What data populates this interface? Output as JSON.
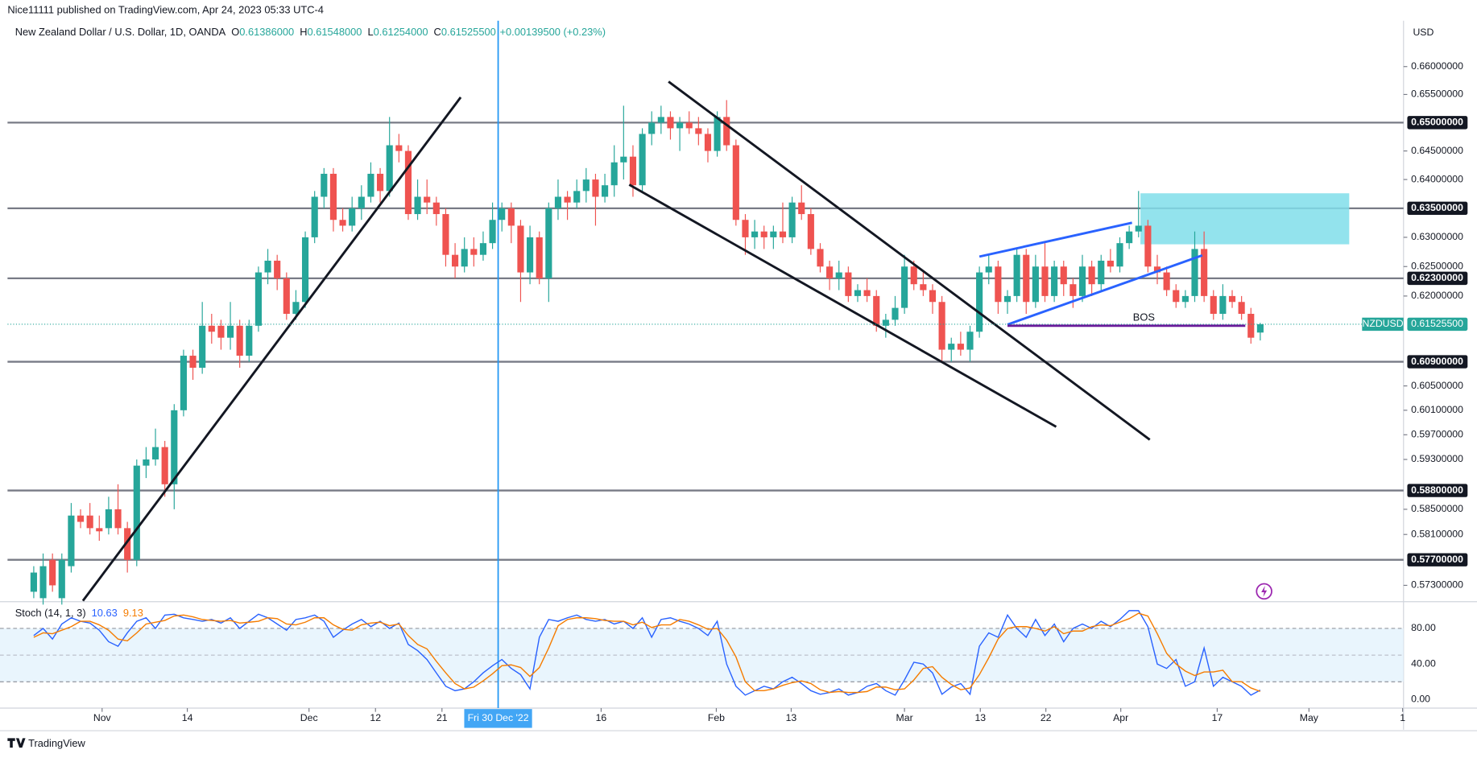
{
  "chart_data": {
    "type": "candlestick",
    "header_text": "Nice11111 published on TradingView.com, Apr 24, 2023 05:33 UTC-4",
    "title": "New Zealand Dollar / U.S. Dollar, 1D, OANDA",
    "ohlc_prefixes": [
      "O",
      "H",
      "L",
      "C"
    ],
    "last_labels": [
      "0.61386000",
      "0.61548000",
      "0.61254000",
      "0.61525500"
    ],
    "change_label": "+0.00139500 (+0.23%)",
    "currency": "USD",
    "symbol": "NZDUSD",
    "footer": "TradingView",
    "up_color": "#26a69a",
    "down_color": "#ef5350",
    "log_scale": true,
    "xlim": [
      -2.8,
      146.3
    ],
    "ylim": [
      0.5706,
      0.6683
    ],
    "xticks": [
      {
        "value": 7.3,
        "label": "Nov"
      },
      {
        "value": 16.4,
        "label": "14"
      },
      {
        "value": 29.4,
        "label": "Dec"
      },
      {
        "value": 36.5,
        "label": "12"
      },
      {
        "value": 43.6,
        "label": "21"
      },
      {
        "value": 60.6,
        "label": "16"
      },
      {
        "value": 72.9,
        "label": "Feb"
      },
      {
        "value": 80.9,
        "label": "13"
      },
      {
        "value": 93.0,
        "label": "Mar"
      },
      {
        "value": 101.1,
        "label": "13"
      },
      {
        "value": 108.1,
        "label": "22"
      },
      {
        "value": 116.1,
        "label": "Apr"
      },
      {
        "value": 126.4,
        "label": "17"
      },
      {
        "value": 136.2,
        "label": "May"
      },
      {
        "value": 146.2,
        "label": "1"
      }
    ],
    "yticks": [
      {
        "value": 0.66,
        "label": "0.66000000"
      },
      {
        "value": 0.655,
        "label": "0.65500000"
      },
      {
        "value": 0.645,
        "label": "0.64500000"
      },
      {
        "value": 0.64,
        "label": "0.64000000"
      },
      {
        "value": 0.63,
        "label": "0.63000000"
      },
      {
        "value": 0.625,
        "label": "0.62500000"
      },
      {
        "value": 0.62,
        "label": "0.62000000"
      },
      {
        "value": 0.605,
        "label": "0.60500000"
      },
      {
        "value": 0.601,
        "label": "0.60100000"
      },
      {
        "value": 0.597,
        "label": "0.59700000"
      },
      {
        "value": 0.593,
        "label": "0.59300000"
      },
      {
        "value": 0.585,
        "label": "0.58500000"
      },
      {
        "value": 0.581,
        "label": "0.58100000"
      },
      {
        "value": 0.573,
        "label": "0.57300000"
      }
    ],
    "levels": [
      {
        "value": 0.65,
        "label": "0.65000000"
      },
      {
        "value": 0.635,
        "label": "0.63500000"
      },
      {
        "value": 0.623,
        "label": "0.62300000"
      },
      {
        "value": 0.609,
        "label": "0.60900000"
      },
      {
        "value": 0.588,
        "label": "0.58800000"
      },
      {
        "value": 0.577,
        "label": "0.57700000"
      }
    ],
    "crosshair": {
      "x": 49.6,
      "label": "Fri 30 Dec '22"
    },
    "drawings": [
      {
        "color": "#131722",
        "points": [
          [
            5.25,
            0.5706
          ],
          [
            45.6,
            0.6545
          ]
        ]
      },
      {
        "color": "#131722",
        "points": [
          [
            67.8,
            0.6573
          ],
          [
            119.2,
            0.5962
          ]
        ]
      },
      {
        "color": "#131722",
        "points": [
          [
            63.6,
            0.6391
          ],
          [
            109.2,
            0.5983
          ]
        ]
      },
      {
        "color": "#2962ff",
        "points": [
          [
            101.0,
            0.6267
          ],
          [
            117.3,
            0.6325
          ]
        ]
      },
      {
        "color": "#2962ff",
        "points": [
          [
            104.0,
            0.6152
          ],
          [
            124.8,
            0.6269
          ]
        ]
      },
      {
        "color": "#6a1b9a",
        "points": [
          [
            104.0,
            0.615
          ],
          [
            129.4,
            0.615
          ]
        ]
      }
    ],
    "zone": {
      "color": "#80deea",
      "x": [
        118.2,
        140.5
      ],
      "y": [
        0.6288,
        0.6376
      ]
    },
    "annotation": {
      "text": "BOS",
      "x": 117.4,
      "y": 0.6163
    },
    "ohlc": [
      [
        0.572,
        0.576,
        0.571,
        0.575
      ],
      [
        0.571,
        0.578,
        0.57,
        0.576
      ],
      [
        0.577,
        0.578,
        0.572,
        0.573
      ],
      [
        0.571,
        0.578,
        0.57,
        0.577
      ],
      [
        0.576,
        0.586,
        0.575,
        0.584
      ],
      [
        0.584,
        0.585,
        0.582,
        0.583
      ],
      [
        0.584,
        0.586,
        0.581,
        0.582
      ],
      [
        0.582,
        0.584,
        0.58,
        0.5815
      ],
      [
        0.582,
        0.587,
        0.581,
        0.585
      ],
      [
        0.585,
        0.589,
        0.581,
        0.582
      ],
      [
        0.582,
        0.583,
        0.575,
        0.577
      ],
      [
        0.577,
        0.593,
        0.576,
        0.592
      ],
      [
        0.592,
        0.595,
        0.59,
        0.593
      ],
      [
        0.593,
        0.598,
        0.592,
        0.595
      ],
      [
        0.595,
        0.596,
        0.587,
        0.589
      ],
      [
        0.589,
        0.602,
        0.585,
        0.601
      ],
      [
        0.601,
        0.611,
        0.6,
        0.61
      ],
      [
        0.61,
        0.611,
        0.606,
        0.608
      ],
      [
        0.608,
        0.619,
        0.607,
        0.615
      ],
      [
        0.615,
        0.617,
        0.612,
        0.614
      ],
      [
        0.615,
        0.616,
        0.611,
        0.613
      ],
      [
        0.613,
        0.619,
        0.611,
        0.615
      ],
      [
        0.615,
        0.616,
        0.608,
        0.61
      ],
      [
        0.61,
        0.616,
        0.609,
        0.615
      ],
      [
        0.615,
        0.625,
        0.614,
        0.624
      ],
      [
        0.624,
        0.628,
        0.622,
        0.626
      ],
      [
        0.626,
        0.627,
        0.621,
        0.623
      ],
      [
        0.623,
        0.624,
        0.616,
        0.617
      ],
      [
        0.617,
        0.621,
        0.616,
        0.619
      ],
      [
        0.619,
        0.631,
        0.618,
        0.63
      ],
      [
        0.63,
        0.638,
        0.629,
        0.637
      ],
      [
        0.637,
        0.642,
        0.635,
        0.641
      ],
      [
        0.641,
        0.642,
        0.631,
        0.633
      ],
      [
        0.633,
        0.635,
        0.631,
        0.632
      ],
      [
        0.632,
        0.637,
        0.631,
        0.635
      ],
      [
        0.635,
        0.639,
        0.633,
        0.637
      ],
      [
        0.637,
        0.643,
        0.636,
        0.641
      ],
      [
        0.641,
        0.642,
        0.636,
        0.638
      ],
      [
        0.638,
        0.651,
        0.637,
        0.646
      ],
      [
        0.646,
        0.648,
        0.643,
        0.645
      ],
      [
        0.645,
        0.646,
        0.633,
        0.634
      ],
      [
        0.634,
        0.64,
        0.633,
        0.637
      ],
      [
        0.637,
        0.64,
        0.634,
        0.636
      ],
      [
        0.636,
        0.637,
        0.632,
        0.634
      ],
      [
        0.634,
        0.635,
        0.625,
        0.627
      ],
      [
        0.627,
        0.629,
        0.623,
        0.625
      ],
      [
        0.625,
        0.63,
        0.624,
        0.628
      ],
      [
        0.628,
        0.63,
        0.625,
        0.627
      ],
      [
        0.627,
        0.631,
        0.626,
        0.629
      ],
      [
        0.629,
        0.636,
        0.628,
        0.633
      ],
      [
        0.633,
        0.636,
        0.631,
        0.635
      ],
      [
        0.635,
        0.636,
        0.629,
        0.632
      ],
      [
        0.632,
        0.633,
        0.619,
        0.624
      ],
      [
        0.624,
        0.632,
        0.622,
        0.63
      ],
      [
        0.63,
        0.631,
        0.622,
        0.623
      ],
      [
        0.623,
        0.636,
        0.619,
        0.635
      ],
      [
        0.635,
        0.64,
        0.633,
        0.637
      ],
      [
        0.637,
        0.638,
        0.633,
        0.636
      ],
      [
        0.636,
        0.64,
        0.635,
        0.638
      ],
      [
        0.638,
        0.642,
        0.636,
        0.64
      ],
      [
        0.64,
        0.641,
        0.632,
        0.637
      ],
      [
        0.637,
        0.641,
        0.636,
        0.639
      ],
      [
        0.639,
        0.646,
        0.637,
        0.643
      ],
      [
        0.643,
        0.653,
        0.64,
        0.644
      ],
      [
        0.644,
        0.646,
        0.637,
        0.639
      ],
      [
        0.639,
        0.649,
        0.638,
        0.648
      ],
      [
        0.648,
        0.652,
        0.646,
        0.65
      ],
      [
        0.65,
        0.653,
        0.648,
        0.651
      ],
      [
        0.651,
        0.652,
        0.647,
        0.649
      ],
      [
        0.649,
        0.651,
        0.645,
        0.65
      ],
      [
        0.65,
        0.652,
        0.648,
        0.649
      ],
      [
        0.649,
        0.651,
        0.646,
        0.648
      ],
      [
        0.648,
        0.649,
        0.643,
        0.645
      ],
      [
        0.645,
        0.652,
        0.644,
        0.651
      ],
      [
        0.651,
        0.654,
        0.645,
        0.646
      ],
      [
        0.646,
        0.647,
        0.632,
        0.633
      ],
      [
        0.633,
        0.634,
        0.627,
        0.63
      ],
      [
        0.63,
        0.633,
        0.628,
        0.631
      ],
      [
        0.631,
        0.632,
        0.628,
        0.63
      ],
      [
        0.63,
        0.632,
        0.628,
        0.631
      ],
      [
        0.631,
        0.636,
        0.629,
        0.63
      ],
      [
        0.63,
        0.637,
        0.629,
        0.636
      ],
      [
        0.636,
        0.639,
        0.633,
        0.634
      ],
      [
        0.634,
        0.635,
        0.627,
        0.628
      ],
      [
        0.628,
        0.629,
        0.624,
        0.625
      ],
      [
        0.625,
        0.626,
        0.621,
        0.623
      ],
      [
        0.623,
        0.626,
        0.621,
        0.624
      ],
      [
        0.624,
        0.625,
        0.619,
        0.62
      ],
      [
        0.62,
        0.622,
        0.619,
        0.621
      ],
      [
        0.621,
        0.623,
        0.619,
        0.62
      ],
      [
        0.62,
        0.621,
        0.614,
        0.615
      ],
      [
        0.615,
        0.617,
        0.613,
        0.616
      ],
      [
        0.616,
        0.62,
        0.615,
        0.618
      ],
      [
        0.618,
        0.627,
        0.617,
        0.625
      ],
      [
        0.625,
        0.626,
        0.621,
        0.622
      ],
      [
        0.622,
        0.624,
        0.62,
        0.621
      ],
      [
        0.621,
        0.622,
        0.617,
        0.619
      ],
      [
        0.619,
        0.62,
        0.609,
        0.611
      ],
      [
        0.611,
        0.613,
        0.609,
        0.612
      ],
      [
        0.612,
        0.614,
        0.61,
        0.611
      ],
      [
        0.611,
        0.615,
        0.609,
        0.614
      ],
      [
        0.614,
        0.625,
        0.613,
        0.624
      ],
      [
        0.624,
        0.627,
        0.622,
        0.625
      ],
      [
        0.625,
        0.626,
        0.617,
        0.619
      ],
      [
        0.619,
        0.621,
        0.617,
        0.62
      ],
      [
        0.62,
        0.628,
        0.619,
        0.627
      ],
      [
        0.627,
        0.628,
        0.617,
        0.619
      ],
      [
        0.619,
        0.627,
        0.618,
        0.625
      ],
      [
        0.625,
        0.629,
        0.619,
        0.62
      ],
      [
        0.62,
        0.626,
        0.619,
        0.625
      ],
      [
        0.625,
        0.626,
        0.62,
        0.622
      ],
      [
        0.622,
        0.623,
        0.618,
        0.62
      ],
      [
        0.62,
        0.627,
        0.619,
        0.625
      ],
      [
        0.625,
        0.626,
        0.62,
        0.622
      ],
      [
        0.622,
        0.627,
        0.621,
        0.626
      ],
      [
        0.626,
        0.628,
        0.624,
        0.625
      ],
      [
        0.625,
        0.63,
        0.624,
        0.629
      ],
      [
        0.629,
        0.632,
        0.628,
        0.631
      ],
      [
        0.631,
        0.638,
        0.63,
        0.632
      ],
      [
        0.632,
        0.633,
        0.624,
        0.625
      ],
      [
        0.625,
        0.627,
        0.622,
        0.624
      ],
      [
        0.624,
        0.625,
        0.62,
        0.621
      ],
      [
        0.621,
        0.622,
        0.618,
        0.619
      ],
      [
        0.619,
        0.621,
        0.618,
        0.62
      ],
      [
        0.62,
        0.631,
        0.619,
        0.628
      ],
      [
        0.628,
        0.631,
        0.619,
        0.62
      ],
      [
        0.62,
        0.621,
        0.616,
        0.617
      ],
      [
        0.617,
        0.622,
        0.616,
        0.62
      ],
      [
        0.62,
        0.621,
        0.618,
        0.619
      ],
      [
        0.619,
        0.62,
        0.616,
        0.617
      ],
      [
        0.617,
        0.618,
        0.612,
        0.613
      ],
      [
        0.61386,
        0.61548,
        0.61254,
        0.615255
      ]
    ],
    "stoch": {
      "label": "Stoch (14, 1, 3)",
      "ylim": [
        -7.5,
        109
      ],
      "yticks": [
        {
          "value": 80,
          "label": "80.00"
        },
        {
          "value": 40,
          "label": "40.00"
        },
        {
          "value": 0,
          "label": "0.00"
        }
      ],
      "bands": [
        20,
        80
      ],
      "midline": 50,
      "band_color": "#e3f2fd",
      "series": [
        {
          "name": "10.63",
          "color": "#2962ff",
          "values": [
            72,
            80,
            68,
            85,
            92,
            88,
            86,
            78,
            65,
            60,
            75,
            88,
            92,
            80,
            95,
            96,
            92,
            90,
            88,
            90,
            86,
            92,
            80,
            88,
            96,
            92,
            85,
            78,
            90,
            92,
            95,
            88,
            70,
            78,
            85,
            90,
            82,
            88,
            80,
            86,
            62,
            55,
            45,
            30,
            15,
            10,
            12,
            20,
            30,
            38,
            45,
            35,
            28,
            12,
            70,
            90,
            88,
            92,
            95,
            90,
            88,
            90,
            85,
            88,
            80,
            92,
            70,
            90,
            92,
            88,
            85,
            80,
            72,
            88,
            40,
            15,
            5,
            10,
            15,
            12,
            20,
            25,
            18,
            10,
            6,
            8,
            12,
            5,
            8,
            15,
            18,
            10,
            5,
            22,
            42,
            40,
            30,
            6,
            14,
            18,
            6,
            60,
            75,
            70,
            95,
            80,
            70,
            90,
            72,
            85,
            65,
            80,
            85,
            80,
            88,
            82,
            90,
            100,
            100,
            82,
            40,
            35,
            45,
            15,
            20,
            58,
            15,
            25,
            20,
            15,
            5,
            10.63
          ]
        },
        {
          "name": "9.13",
          "color": "#f57c00",
          "values": [
            70,
            75,
            74,
            78,
            82,
            88,
            88,
            84,
            78,
            68,
            66,
            75,
            85,
            87,
            89,
            94,
            95,
            93,
            90,
            89,
            88,
            89,
            86,
            87,
            88,
            92,
            91,
            85,
            84,
            87,
            92,
            92,
            84,
            79,
            78,
            84,
            86,
            87,
            83,
            85,
            72,
            62,
            57,
            43,
            30,
            18,
            12,
            14,
            21,
            29,
            38,
            39,
            36,
            26,
            36,
            58,
            83,
            90,
            92,
            92,
            91,
            89,
            88,
            88,
            84,
            87,
            81,
            84,
            84,
            90,
            88,
            84,
            79,
            80,
            67,
            48,
            20,
            10,
            10,
            12,
            16,
            19,
            21,
            18,
            11,
            8,
            9,
            8,
            8,
            9,
            14,
            14,
            11,
            12,
            22,
            35,
            37,
            25,
            17,
            11,
            13,
            28,
            47,
            68,
            80,
            82,
            82,
            80,
            77,
            82,
            74,
            77,
            77,
            82,
            84,
            83,
            87,
            91,
            97,
            94,
            74,
            52,
            40,
            32,
            27,
            31,
            31,
            33,
            20,
            20,
            13,
            9.13
          ]
        }
      ]
    }
  }
}
